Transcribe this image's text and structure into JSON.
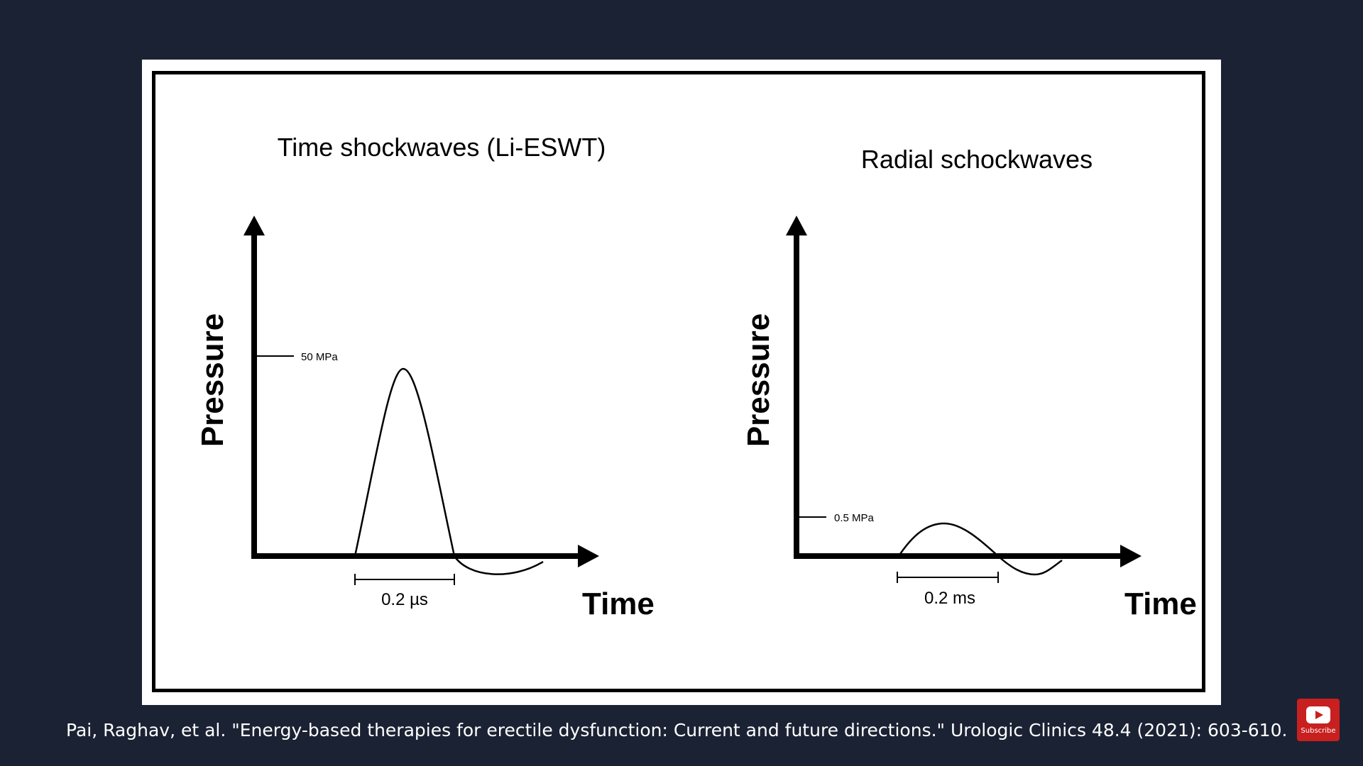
{
  "left_panel": {
    "title": "Time shockwaves (Li-ESWT)",
    "y_axis_label": "Pressure",
    "x_axis_label": "Time",
    "pressure_marker": "50 MPa",
    "duration_label": "0.2 µs"
  },
  "right_panel": {
    "title": "Radial schockwaves",
    "y_axis_label": "Pressure",
    "x_axis_label": "Time",
    "pressure_marker": "0.5 MPa",
    "duration_label": "0.2 ms"
  },
  "caption": "Pai, Raghav, et al. \"Energy-based therapies for erectile dysfunction: Current and future directions.\" Urologic Clinics 48.4 (2021): 603-610.",
  "subscribe": {
    "label": "Subscribe",
    "icon": "youtube-play-icon",
    "color": "#c8201f"
  },
  "colors": {
    "background": "#1b2234",
    "panel": "#ffffff",
    "ink": "#000000"
  }
}
